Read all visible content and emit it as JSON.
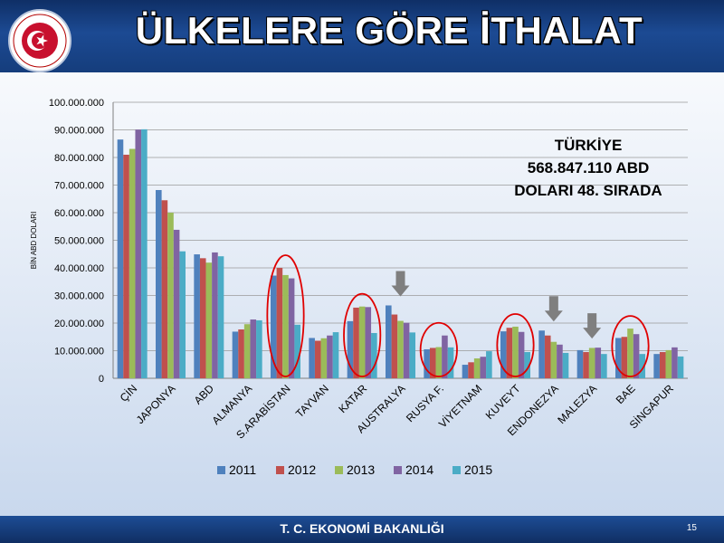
{
  "slide": {
    "title": "ÜLKELERE GÖRE İTHALAT",
    "footer": "T. C. EKONOMİ BAKANLIĞI",
    "page_number": "15",
    "logo_text": "TÜRKİYE CUMHURİYETİ EKONOMİ BAKANLIĞI"
  },
  "annotation": {
    "line1": "TÜRKİYE",
    "line2": "568.847.110 ABD",
    "line3": "DOLARI 48. SIRADA"
  },
  "colors": {
    "s2011": "#4f81bd",
    "s2012": "#c0504d",
    "s2013": "#9bbb59",
    "s2014": "#8064a2",
    "s2015": "#4bacc6",
    "highlight_circle": "#e00000",
    "arrow": "#7f7f7f"
  },
  "chart_data": {
    "type": "bar",
    "ylabel": "BİN ABD DOLARI",
    "ylim": [
      0,
      100000000
    ],
    "yticks": [
      "0",
      "10.000.000",
      "20.000.000",
      "30.000.000",
      "40.000.000",
      "50.000.000",
      "60.000.000",
      "70.000.000",
      "80.000.000",
      "90.000.000",
      "100.000.000"
    ],
    "grid": true,
    "legend_position": "bottom",
    "categories": [
      "ÇİN",
      "JAPONYA",
      "ABD",
      "ALMANYA",
      "S.ARABİSTAN",
      "TAYVAN",
      "KATAR",
      "AUSTRALYA",
      "RUSYA F.",
      "VİYETNAM",
      "KUVEYT",
      "ENDONEZYA",
      "MALEZYA",
      "BAE",
      "SİNGAPUR"
    ],
    "series": [
      {
        "name": "2011",
        "values": [
          86500000,
          68200000,
          44900000,
          16900000,
          37200000,
          14600000,
          20700000,
          26400000,
          10500000,
          4900000,
          17000000,
          17300000,
          10200000,
          14600000,
          8800000
        ]
      },
      {
        "name": "2012",
        "values": [
          81000000,
          64500000,
          43500000,
          17700000,
          40000000,
          13600000,
          25600000,
          23100000,
          11000000,
          5800000,
          18300000,
          15500000,
          9500000,
          15000000,
          9500000
        ]
      },
      {
        "name": "2013",
        "values": [
          83100000,
          60000000,
          41900000,
          19600000,
          37400000,
          14500000,
          26000000,
          20800000,
          11300000,
          7200000,
          18700000,
          13200000,
          11000000,
          18000000,
          10200000
        ]
      },
      {
        "name": "2014",
        "values": [
          90100000,
          53800000,
          45600000,
          21300000,
          36200000,
          15500000,
          25800000,
          20100000,
          15500000,
          7800000,
          16800000,
          12200000,
          11100000,
          16000000,
          11200000
        ]
      },
      {
        "name": "2015",
        "values": [
          90200000,
          46000000,
          44200000,
          21000000,
          19400000,
          16700000,
          16400000,
          16600000,
          11200000,
          9800000,
          9500000,
          9200000,
          8800000,
          8800000,
          7900000
        ]
      }
    ],
    "highlighted_categories": [
      "S.ARABİSTAN",
      "KATAR",
      "RUSYA F.",
      "KUVEYT",
      "BAE"
    ],
    "arrow_categories": [
      "AUSTRALYA",
      "ENDONEZYA",
      "MALEZYA"
    ]
  }
}
